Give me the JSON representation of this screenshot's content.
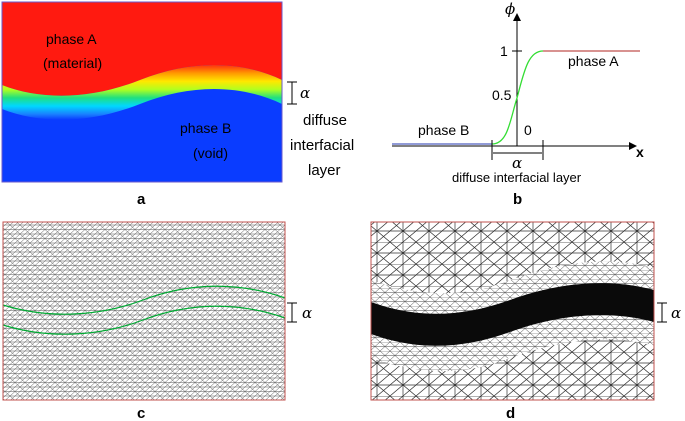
{
  "panel_a": {
    "phase_a": "phase A",
    "material": "(material)",
    "phase_b": "phase B",
    "void": "(void)",
    "alpha": "α",
    "diffuse_1": "diffuse",
    "diffuse_2": "interfacial",
    "diffuse_3": "layer",
    "caption": "a",
    "colors": {
      "phase_a": "#ff1a10",
      "phase_b": "#0a3cff"
    }
  },
  "panel_b": {
    "y_axis": "ϕ",
    "x_axis": "x",
    "tick_1": "1",
    "tick_05": "0.5",
    "tick_0": "0",
    "phase_a": "phase A",
    "phase_b": "phase B",
    "alpha": "α",
    "layer_label": "diffuse interfacial layer",
    "caption": "b",
    "colors": {
      "phase_a_line": "#c0504d",
      "phase_b_line": "#4f5fbf",
      "profile": "#33dd33"
    }
  },
  "panel_c": {
    "alpha": "α",
    "caption": "c",
    "colors": {
      "border": "#c0504d",
      "interface": "#00aa33"
    }
  },
  "panel_d": {
    "alpha": "α",
    "caption": "d",
    "colors": {
      "border": "#c0504d"
    }
  }
}
